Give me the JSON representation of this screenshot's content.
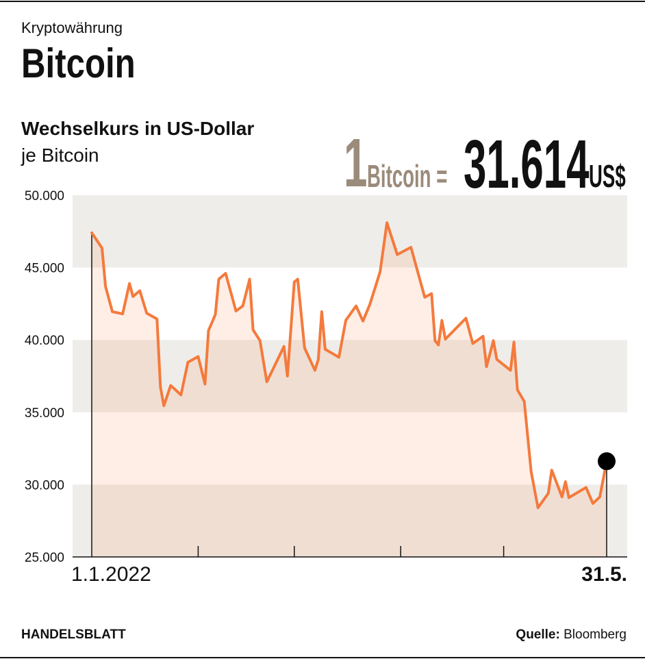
{
  "header": {
    "kicker": "Kryptowährung",
    "title": "Bitcoin",
    "subtitle": "Wechselkurs in US-Dollar",
    "unit_note": "je Bitcoin"
  },
  "highlight": {
    "one": "1",
    "bitcoin_label": "Bitcoin =",
    "value": "31.614",
    "currency": "US$",
    "color_muted": "#9b8b7b"
  },
  "footer": {
    "brand": "HANDELSBLATT",
    "source_label": "Quelle:",
    "source": "Bloomberg"
  },
  "chart_data": {
    "type": "area",
    "title": "Wechselkurs in US-Dollar",
    "ylabel": "je Bitcoin",
    "ylim": [
      25000,
      50000
    ],
    "yticks": [
      "25.000",
      "30.000",
      "35.000",
      "40.000",
      "45.000",
      "50.000"
    ],
    "xlim": [
      "2022-01-01",
      "2022-05-31"
    ],
    "xtick_labels": {
      "start": "1.1.2022",
      "end": "31.5."
    },
    "xticks": [
      "2022-02-01",
      "2022-03-01",
      "2022-04-01",
      "2022-05-01"
    ],
    "banded_background": true,
    "line_color": "#f47a3c",
    "band_color": "#efedea",
    "marker_color": "#000000",
    "series": [
      {
        "x": [
          "2022-01-01",
          "2022-01-04",
          "2022-01-05",
          "2022-01-07",
          "2022-01-10",
          "2022-01-12",
          "2022-01-13",
          "2022-01-15",
          "2022-01-17",
          "2022-01-20",
          "2022-01-21",
          "2022-01-22",
          "2022-01-24",
          "2022-01-27",
          "2022-01-29",
          "2022-02-01",
          "2022-02-03",
          "2022-02-04",
          "2022-02-06",
          "2022-02-07",
          "2022-02-09",
          "2022-02-12",
          "2022-02-14",
          "2022-02-16",
          "2022-02-17",
          "2022-02-19",
          "2022-02-21",
          "2022-02-26",
          "2022-02-27",
          "2022-03-01",
          "2022-03-02",
          "2022-03-04",
          "2022-03-07",
          "2022-03-08",
          "2022-03-09",
          "2022-03-10",
          "2022-03-14",
          "2022-03-16",
          "2022-03-19",
          "2022-03-21",
          "2022-03-23",
          "2022-03-26",
          "2022-03-28",
          "2022-03-31",
          "2022-04-04",
          "2022-04-08",
          "2022-04-10",
          "2022-04-11",
          "2022-04-12",
          "2022-04-13",
          "2022-04-14",
          "2022-04-20",
          "2022-04-22",
          "2022-04-25",
          "2022-04-26",
          "2022-04-28",
          "2022-04-29",
          "2022-05-03",
          "2022-05-04",
          "2022-05-05",
          "2022-05-07",
          "2022-05-09",
          "2022-05-11",
          "2022-05-14",
          "2022-05-15",
          "2022-05-18",
          "2022-05-19",
          "2022-05-20",
          "2022-05-25",
          "2022-05-27",
          "2022-05-29",
          "2022-05-31"
        ],
        "y": [
          47400,
          46350,
          43700,
          41950,
          41800,
          43900,
          43000,
          43400,
          41850,
          41450,
          36750,
          35450,
          36850,
          36200,
          38450,
          38850,
          36950,
          40650,
          41750,
          44200,
          44600,
          42000,
          42350,
          44200,
          40700,
          39950,
          37100,
          39550,
          37500,
          44000,
          44200,
          39450,
          37900,
          38650,
          41950,
          39350,
          38800,
          41350,
          42350,
          41300,
          42450,
          44700,
          48100,
          45900,
          46400,
          42950,
          43200,
          39950,
          39650,
          41350,
          40050,
          41500,
          39750,
          40250,
          38150,
          39950,
          38650,
          37900,
          39850,
          36550,
          35750,
          30900,
          28400,
          29400,
          31000,
          29150,
          30200,
          29100,
          29800,
          28700,
          29150,
          31614
        ]
      }
    ]
  }
}
